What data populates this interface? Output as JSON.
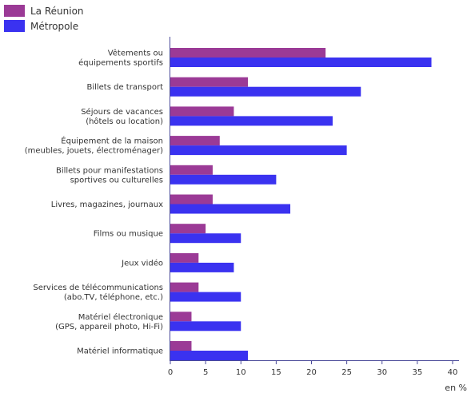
{
  "chart_data": {
    "type": "bar",
    "orientation": "horizontal",
    "categories": [
      [
        "Vêtements ou",
        "équipements sportifs"
      ],
      [
        "Billets de transport"
      ],
      [
        "Séjours de vacances",
        "(hôtels ou location)"
      ],
      [
        "Équipement de la maison",
        "(meubles, jouets, électroménager)"
      ],
      [
        "Billets pour manifestations",
        "sportives ou culturelles"
      ],
      [
        "Livres, magazines, journaux"
      ],
      [
        "Films ou musique"
      ],
      [
        "Jeux vidéo"
      ],
      [
        "Services de télécommunications",
        "(abo.TV, téléphone, etc.)"
      ],
      [
        "Matériel électronique",
        "(GPS, appareil photo, Hi-Fi)"
      ],
      [
        "Matériel informatique"
      ]
    ],
    "series": [
      {
        "name": "La Réunion",
        "color": "#9b3a96",
        "values": [
          22,
          11,
          9,
          7,
          6,
          6,
          5,
          4,
          4,
          3,
          3
        ]
      },
      {
        "name": "Métropole",
        "color": "#3a32f0",
        "values": [
          37,
          27,
          23,
          25,
          15,
          17,
          10,
          9,
          10,
          10,
          11
        ]
      }
    ],
    "xlim": [
      0,
      40
    ],
    "xticks": [
      0,
      5,
      10,
      15,
      20,
      25,
      30,
      35,
      40
    ],
    "xlabel": "en %",
    "legend": "top-left",
    "grid": false
  }
}
